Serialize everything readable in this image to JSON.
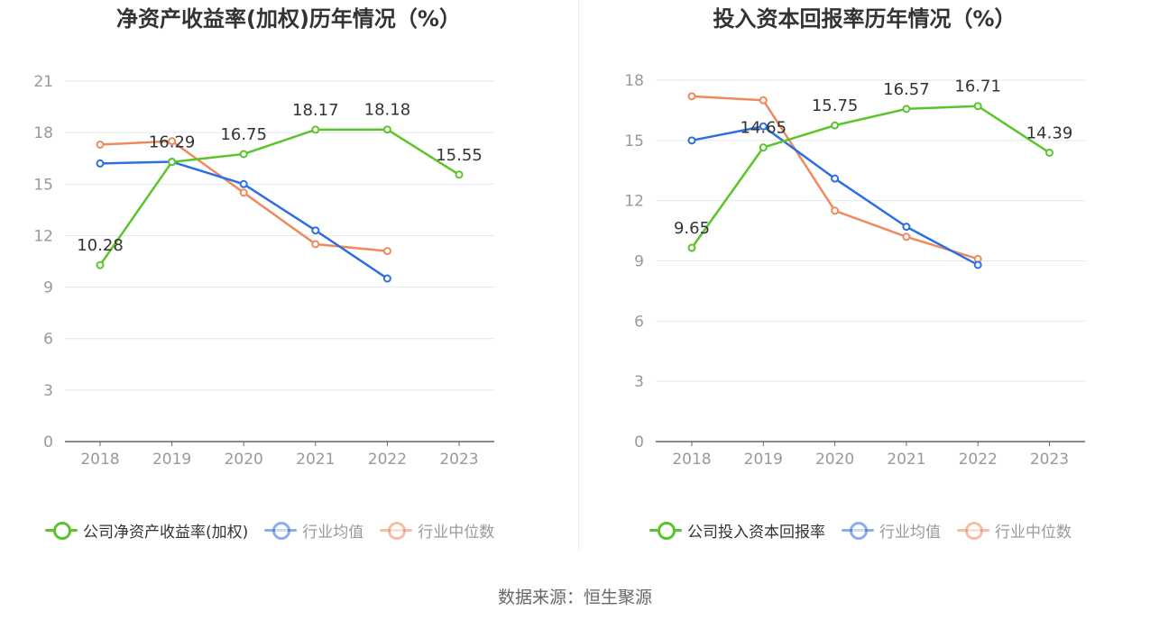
{
  "source_text": "数据来源：恒生聚源",
  "colors": {
    "company": "#5ac52b",
    "industry_avg": "#2e6fe0",
    "industry_median": "#ef8a5d",
    "grid": "#e3e6f0",
    "axis": "#666666",
    "tick_text": "#999999",
    "value_label": "#333333"
  },
  "legend_icons": {
    "company": "circle-line-icon",
    "industry_avg": "circle-line-icon",
    "industry_median": "circle-line-icon"
  },
  "chart_data": [
    {
      "type": "line",
      "title": "净资产收益率(加权)历年情况（%）",
      "categories": [
        "2018",
        "2019",
        "2020",
        "2021",
        "2022",
        "2023"
      ],
      "yticks": [
        "0",
        "3",
        "6",
        "9",
        "12",
        "15",
        "18",
        "21"
      ],
      "ylim": [
        0,
        21
      ],
      "grid": true,
      "legend_position": "bottom",
      "series": [
        {
          "name": "公司净资产收益率(加权)",
          "key": "company",
          "values": [
            10.28,
            16.29,
            16.75,
            18.17,
            18.18,
            15.55
          ],
          "labels": [
            "10.28",
            "16.29",
            "16.75",
            "18.17",
            "18.18",
            "15.55"
          ]
        },
        {
          "name": "行业均值",
          "key": "industry_avg",
          "values": [
            16.2,
            16.3,
            15.0,
            12.3,
            9.5,
            null
          ]
        },
        {
          "name": "行业中位数",
          "key": "industry_median",
          "values": [
            17.3,
            17.5,
            14.5,
            11.5,
            11.1,
            null
          ]
        }
      ]
    },
    {
      "type": "line",
      "title": "投入资本回报率历年情况（%）",
      "categories": [
        "2018",
        "2019",
        "2020",
        "2021",
        "2022",
        "2023"
      ],
      "yticks": [
        "0",
        "3",
        "6",
        "9",
        "12",
        "15",
        "18"
      ],
      "ylim": [
        0,
        18
      ],
      "grid": true,
      "legend_position": "bottom",
      "series": [
        {
          "name": "公司投入资本回报率",
          "key": "company",
          "values": [
            9.65,
            14.65,
            15.75,
            16.57,
            16.71,
            14.39
          ],
          "labels": [
            "9.65",
            "14.65",
            "15.75",
            "16.57",
            "16.71",
            "14.39"
          ]
        },
        {
          "name": "行业均值",
          "key": "industry_avg",
          "values": [
            15.0,
            15.7,
            13.1,
            10.7,
            8.8,
            null
          ]
        },
        {
          "name": "行业中位数",
          "key": "industry_median",
          "values": [
            17.2,
            17.0,
            11.5,
            10.2,
            9.1,
            null
          ]
        }
      ]
    }
  ]
}
